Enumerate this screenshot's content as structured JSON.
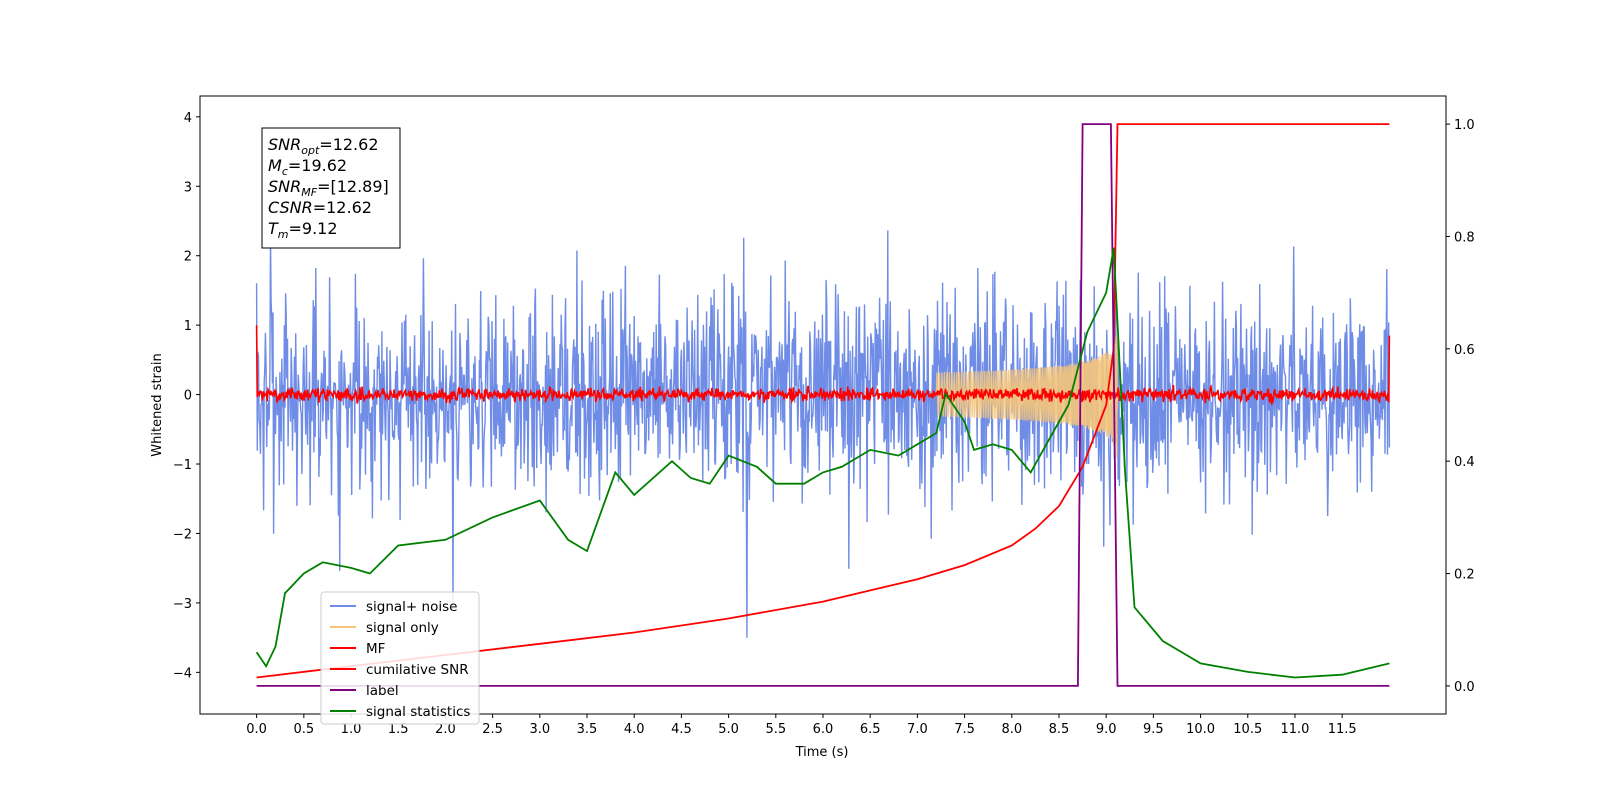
{
  "chart_data": {
    "type": "line",
    "title": "",
    "xlabel": "Time (s)",
    "ylabel": "Whitened strain",
    "xlim": [
      -0.6,
      12.6
    ],
    "ylim": [
      -4.6,
      4.3
    ],
    "ylim_right": [
      -0.05,
      1.05
    ],
    "x_ticks": [
      "0.0",
      "0.5",
      "1.0",
      "1.5",
      "2.0",
      "2.5",
      "3.0",
      "3.5",
      "4.0",
      "4.5",
      "5.0",
      "5.5",
      "6.0",
      "6.5",
      "7.0",
      "7.5",
      "8.0",
      "8.5",
      "9.0",
      "9.5",
      "10.0",
      "10.5",
      "11.0",
      "11.5"
    ],
    "y_ticks": [
      "4",
      "3",
      "2",
      "1",
      "0",
      "−1",
      "−2",
      "−3",
      "−4"
    ],
    "y_ticks_right": [
      "1.0",
      "0.8",
      "0.6",
      "0.4",
      "0.2",
      "0.0"
    ],
    "grid": false,
    "legend_position": "lower-left",
    "annotation": {
      "lines": [
        {
          "sym": "SNR",
          "sub": "opt",
          "value": "=12.62"
        },
        {
          "sym": "M",
          "sub": "c",
          "value": "=19.62"
        },
        {
          "sym": "SNR",
          "sub": "MF",
          "value": "=[12.89]"
        },
        {
          "sym": "CSNR",
          "sub": "",
          "value": "=12.62"
        },
        {
          "sym": "T",
          "sub": "m",
          "value": "=9.12"
        }
      ]
    },
    "series": [
      {
        "name": "signal+ noise",
        "axis": "left",
        "color": "#6f8de6",
        "style": "noise",
        "x_range": [
          0,
          12
        ],
        "amplitude_envelope": [
          [
            0,
            3.9
          ],
          [
            12,
            3.9
          ]
        ]
      },
      {
        "name": "signal only",
        "axis": "left",
        "color": "#f5c47a",
        "style": "chirp",
        "x_range": [
          7.2,
          9.12
        ],
        "peak_amplitude": 1.0
      },
      {
        "name": "MF",
        "axis": "left",
        "color": "#ff0000",
        "style": "noise",
        "x_range": [
          0,
          12
        ],
        "baseline": 0.0,
        "spread": 0.12,
        "edge_values": [
          1.0,
          0.85
        ]
      },
      {
        "name": "cumilative SNR",
        "axis": "right",
        "color": "#ff0000",
        "x": [
          0,
          1,
          2,
          3,
          4,
          5,
          6,
          7,
          7.5,
          8,
          8.25,
          8.5,
          8.75,
          9.0,
          9.08,
          9.12,
          12
        ],
        "y": [
          0.015,
          0.035,
          0.055,
          0.075,
          0.095,
          0.12,
          0.15,
          0.19,
          0.215,
          0.25,
          0.28,
          0.32,
          0.39,
          0.5,
          0.6,
          1.0,
          1.0
        ]
      },
      {
        "name": "label",
        "axis": "right",
        "color": "#800080",
        "x": [
          0,
          8.7,
          8.75,
          9.05,
          9.12,
          12
        ],
        "y": [
          0,
          0,
          1,
          1,
          0,
          0
        ]
      },
      {
        "name": "signal statistics",
        "axis": "right",
        "color": "#008000",
        "x": [
          0,
          0.1,
          0.2,
          0.3,
          0.5,
          0.7,
          1.0,
          1.2,
          1.5,
          2.0,
          2.5,
          3.0,
          3.3,
          3.5,
          3.8,
          4.0,
          4.4,
          4.6,
          4.8,
          5.0,
          5.3,
          5.5,
          5.8,
          6.0,
          6.2,
          6.5,
          6.8,
          7.0,
          7.2,
          7.3,
          7.5,
          7.6,
          7.8,
          8.0,
          8.2,
          8.4,
          8.6,
          8.8,
          9.0,
          9.08,
          9.2,
          9.3,
          9.6,
          10.0,
          10.5,
          11.0,
          11.5,
          12.0
        ],
        "y": [
          0.06,
          0.035,
          0.07,
          0.165,
          0.2,
          0.22,
          0.21,
          0.2,
          0.25,
          0.26,
          0.3,
          0.33,
          0.26,
          0.24,
          0.38,
          0.34,
          0.4,
          0.37,
          0.36,
          0.41,
          0.39,
          0.36,
          0.36,
          0.38,
          0.39,
          0.42,
          0.41,
          0.43,
          0.45,
          0.52,
          0.47,
          0.42,
          0.43,
          0.42,
          0.38,
          0.44,
          0.5,
          0.63,
          0.7,
          0.78,
          0.38,
          0.14,
          0.08,
          0.04,
          0.025,
          0.015,
          0.02,
          0.04
        ]
      }
    ]
  }
}
